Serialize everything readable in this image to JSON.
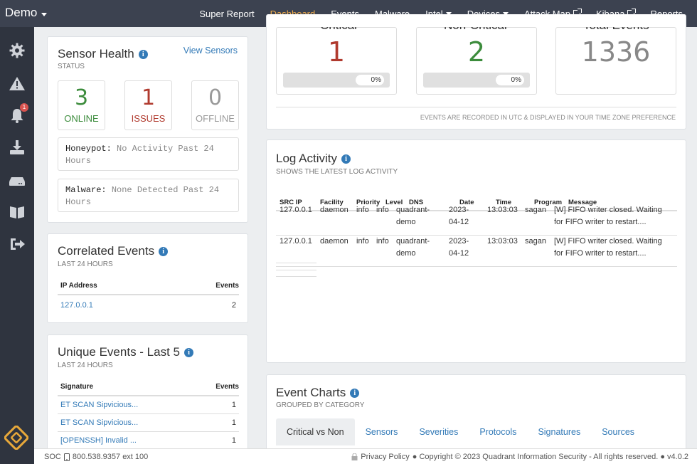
{
  "nav": {
    "brand": "Demo",
    "links": [
      {
        "label": "Super Report"
      },
      {
        "label": "Dashboard"
      },
      {
        "label": "Events"
      },
      {
        "label": "Malware"
      },
      {
        "label": "Intel"
      },
      {
        "label": "Devices"
      },
      {
        "label": "Attack Map"
      },
      {
        "label": "Kibana"
      },
      {
        "label": "Reports"
      }
    ]
  },
  "sidebar": {
    "icons": [
      "gear-icon",
      "warning-icon",
      "bell-icon",
      "download-icon",
      "server-icon",
      "book-icon",
      "sign-out-icon"
    ],
    "notification_count": "1"
  },
  "sensor_health": {
    "title": "Sensor Health",
    "subtitle": "STATUS",
    "link": "View Sensors",
    "online_count": "3",
    "online_label": "ONLINE",
    "issues_count": "1",
    "issues_label": "ISSUES",
    "offline_count": "0",
    "offline_label": "OFFLINE",
    "honeypot_key": "Honeypot:",
    "honeypot_value": "No Activity Past 24 Hours",
    "malware_key": "Malware:",
    "malware_value": "None Detected Past 24 Hours"
  },
  "correlated": {
    "title": "Correlated Events",
    "subtitle": "LAST 24 HOURS",
    "col_ip": "IP Address",
    "col_events": "Events",
    "rows": [
      {
        "ip": "127.0.0.1",
        "events": "2"
      }
    ]
  },
  "unique": {
    "title": "Unique Events - Last 5",
    "subtitle": "LAST 24 HOURS",
    "col_sig": "Signature",
    "col_events": "Events",
    "rows": [
      {
        "sig": "ET SCAN Sipvicious...",
        "events": "1"
      },
      {
        "sig": "ET SCAN Sipvicious...",
        "events": "1"
      },
      {
        "sig": "[OPENSSH] Invalid ...",
        "events": "1"
      }
    ]
  },
  "top_stats": {
    "critical_label": "Critical",
    "critical_value": "1",
    "critical_pct": "0%",
    "noncritical_label": "Non-Critical",
    "noncritical_value": "2",
    "noncritical_pct": "0%",
    "total_label": "Total Events",
    "total_value": "1336",
    "note": "EVENTS ARE RECORDED IN UTC & DISPLAYED IN YOUR TIME ZONE PREFERENCE"
  },
  "log_activity": {
    "title": "Log Activity",
    "subtitle": "SHOWS THE LATEST LOG ACTIVITY",
    "columns": [
      "SRC IP",
      "Facility",
      "Priority",
      "Level",
      "DNS",
      "Date",
      "Time",
      "Program",
      "Message"
    ],
    "rows": [
      {
        "src": "127.0.0.1",
        "facility": "daemon",
        "priority": "info",
        "level": "info",
        "dns1": "quadrant-",
        "dns2": "demo",
        "date1": "2023-",
        "date2": "04-12",
        "time": "13:03:03",
        "program": "sagan",
        "msg1": "[W] FIFO writer closed. Waiting",
        "msg2": "for FIFO writer to restart...."
      },
      {
        "src": "127.0.0.1",
        "facility": "daemon",
        "priority": "info",
        "level": "info",
        "dns1": "quadrant-",
        "dns2": "demo",
        "date1": "2023-",
        "date2": "04-12",
        "time": "13:03:03",
        "program": "sagan",
        "msg1": "[W] FIFO writer closed. Waiting",
        "msg2": "for FIFO writer to restart...."
      }
    ]
  },
  "event_charts": {
    "title": "Event Charts",
    "subtitle": "GROUPED BY CATEGORY",
    "tabs": [
      "Critical vs Non",
      "Sensors",
      "Severities",
      "Protocols",
      "Signatures",
      "Sources"
    ]
  },
  "footer": {
    "soc": "SOC",
    "phone": "800.538.9357 ext 100",
    "privacy": "Privacy Policy",
    "copyright": "● Copyright © 2023 Quadrant Information Security - All rights reserved. ● v4.0.2"
  }
}
